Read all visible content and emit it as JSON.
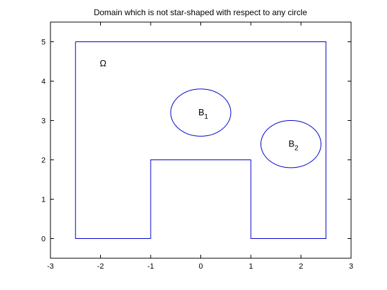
{
  "chart_data": {
    "type": "line",
    "title": "Domain which is not star-shaped with respect to any circle",
    "xlabel": "",
    "ylabel": "",
    "xlim": [
      -3,
      3
    ],
    "ylim": [
      -0.5,
      5.5
    ],
    "x_ticks": [
      -3,
      -2,
      -1,
      0,
      1,
      2,
      3
    ],
    "x_tick_labels": [
      "-3",
      "-2",
      "-1",
      "0",
      "1",
      "2",
      "3"
    ],
    "y_ticks": [
      0,
      1,
      2,
      3,
      4,
      5
    ],
    "y_tick_labels": [
      "0",
      "1",
      "2",
      "3",
      "4",
      "5"
    ],
    "grid": false,
    "line_color": "#0000cc",
    "series": [
      {
        "kind": "polygon",
        "x": [
          -2.5,
          2.5,
          2.5,
          1,
          1,
          -1,
          -1,
          -2.5,
          -2.5
        ],
        "y": [
          5,
          5,
          0,
          0,
          2,
          2,
          0,
          0,
          5
        ]
      },
      {
        "kind": "ellipse",
        "center": [
          0,
          3.2
        ],
        "radii": [
          0.6,
          0.6
        ]
      },
      {
        "kind": "ellipse",
        "center": [
          1.8,
          2.4
        ],
        "radii": [
          0.6,
          0.6
        ]
      }
    ],
    "annotations": [
      {
        "text": "Ω",
        "x": -1.95,
        "y": 4.45
      },
      {
        "text": "B",
        "sub": "1",
        "x": 0.05,
        "y": 3.2
      },
      {
        "text": "B",
        "sub": "2",
        "x": 1.85,
        "y": 2.4
      }
    ]
  }
}
